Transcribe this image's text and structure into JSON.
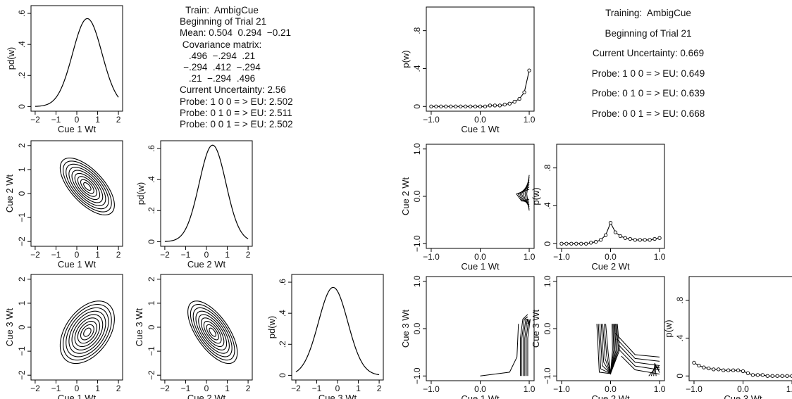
{
  "left_figure": {
    "info": [
      "Train:  AmbigCue",
      "Beginning of Trial 21",
      "Mean: 0.504  0.294  −0.21",
      "Covariance matrix:",
      ".496  −.294  .21",
      "−.294  .412  −.294",
      ".21  −.294  .496",
      "Current Uncertainty: 2.56",
      "Probe: 1 0 0 = > EU: 2.502",
      "Probe: 0 1 0 = > EU: 2.511",
      "Probe: 0 0 1 = > EU: 2.502"
    ],
    "mean": [
      0.504,
      0.294,
      -0.21
    ],
    "covariance": [
      [
        0.496,
        -0.294,
        0.21
      ],
      [
        -0.294,
        0.412,
        -0.294
      ],
      [
        0.21,
        -0.294,
        0.496
      ]
    ],
    "axis_labels": [
      "Cue 1 Wt",
      "Cue 2 Wt",
      "Cue 3 Wt"
    ],
    "x_ticks": [
      "−2",
      "−1",
      "0",
      "1",
      "2"
    ],
    "xlim": [
      -2.2,
      2.2
    ],
    "density_ylabel": "pd(w)",
    "density_ticks": [
      "0",
      ".2",
      ".4",
      ".6"
    ]
  },
  "right_figure": {
    "info": [
      "Training:  AmbigCue",
      "Beginning of Trial 21",
      "Current Uncertainty: 0.669",
      "Probe: 1 0 0 = > EU: 0.649",
      "Probe: 0 1 0 = > EU: 0.639",
      "Probe: 0 0 1 = > EU: 0.668"
    ],
    "axis_labels": [
      "Cue 1 Wt",
      "Cue 2 Wt",
      "Cue 3 Wt"
    ],
    "x_ticks": [
      "−1.0",
      "0.0",
      "1.0"
    ],
    "pair_y_ticks": [
      "−1.0",
      "0.0",
      "1.0"
    ],
    "xlim": [
      -1.1,
      1.1
    ],
    "prob_ylabel": "p(w)",
    "prob_ticks": [
      "0",
      ".4",
      ".8"
    ]
  },
  "chart_data": [
    {
      "type": "line",
      "panel": "left-marginal-cue1",
      "distribution": "normal",
      "mean": 0.504,
      "variance": 0.496,
      "xlabel": "Cue 1 Wt",
      "ylabel": "pd(w)",
      "xlim": [
        -2,
        2
      ],
      "ylim": [
        0,
        0.6
      ]
    },
    {
      "type": "line",
      "panel": "left-marginal-cue2",
      "distribution": "normal",
      "mean": 0.294,
      "variance": 0.412,
      "xlabel": "Cue 2 Wt",
      "ylabel": "pd(w)",
      "xlim": [
        -2,
        2
      ],
      "ylim": [
        0,
        0.6
      ]
    },
    {
      "type": "line",
      "panel": "left-marginal-cue3",
      "distribution": "normal",
      "mean": -0.21,
      "variance": 0.496,
      "xlabel": "Cue 3 Wt",
      "ylabel": "pd(w)",
      "xlim": [
        -2,
        2
      ],
      "ylim": [
        0,
        0.6
      ]
    },
    {
      "type": "contour",
      "panel": "left-joint-cue1-cue2",
      "xlabel": "Cue 1 Wt",
      "ylabel": "Cue 2 Wt",
      "mean": [
        0.504,
        0.294
      ],
      "covariance": [
        [
          0.496,
          -0.294
        ],
        [
          -0.294,
          0.412
        ]
      ],
      "xlim": [
        -2,
        2
      ],
      "ylim": [
        -2,
        2
      ]
    },
    {
      "type": "contour",
      "panel": "left-joint-cue1-cue3",
      "xlabel": "Cue 1 Wt",
      "ylabel": "Cue 3 Wt",
      "mean": [
        0.504,
        -0.21
      ],
      "covariance": [
        [
          0.496,
          0.21
        ],
        [
          0.21,
          0.496
        ]
      ],
      "xlim": [
        -2,
        2
      ],
      "ylim": [
        -2,
        2
      ]
    },
    {
      "type": "contour",
      "panel": "left-joint-cue2-cue3",
      "xlabel": "Cue 2 Wt",
      "ylabel": "Cue 3 Wt",
      "mean": [
        0.294,
        -0.21
      ],
      "covariance": [
        [
          0.412,
          -0.294
        ],
        [
          -0.294,
          0.496
        ]
      ],
      "xlim": [
        -2,
        2
      ],
      "ylim": [
        -2,
        2
      ]
    },
    {
      "type": "line",
      "panel": "right-marginal-cue1",
      "xlabel": "Cue 1 Wt",
      "ylabel": "p(w)",
      "ylim": [
        0,
        1
      ],
      "x": [
        -1.0,
        -0.9,
        -0.8,
        -0.7,
        -0.6,
        -0.5,
        -0.4,
        -0.3,
        -0.2,
        -0.1,
        0.0,
        0.1,
        0.2,
        0.3,
        0.4,
        0.5,
        0.6,
        0.7,
        0.8,
        0.9,
        1.0
      ],
      "y": [
        0.0,
        0.0,
        0.0,
        0.0,
        0.0,
        0.0,
        0.0,
        0.0,
        0.0,
        0.0,
        0.0,
        0.0,
        0.01,
        0.01,
        0.01,
        0.02,
        0.03,
        0.05,
        0.08,
        0.15,
        0.38
      ]
    },
    {
      "type": "line",
      "panel": "right-marginal-cue2",
      "xlabel": "Cue 2 Wt",
      "ylabel": "p(w)",
      "ylim": [
        0,
        1
      ],
      "x": [
        -1.0,
        -0.9,
        -0.8,
        -0.7,
        -0.6,
        -0.5,
        -0.4,
        -0.3,
        -0.2,
        -0.1,
        0.0,
        0.1,
        0.2,
        0.3,
        0.4,
        0.5,
        0.6,
        0.7,
        0.8,
        0.9,
        1.0
      ],
      "y": [
        0.0,
        0.0,
        0.0,
        0.0,
        0.0,
        0.0,
        0.01,
        0.02,
        0.04,
        0.09,
        0.22,
        0.12,
        0.08,
        0.06,
        0.05,
        0.04,
        0.04,
        0.04,
        0.04,
        0.05,
        0.06
      ]
    },
    {
      "type": "line",
      "panel": "right-marginal-cue3",
      "xlabel": "Cue 3 Wt",
      "ylabel": "p(w)",
      "ylim": [
        0,
        1
      ],
      "x": [
        -1.0,
        -0.9,
        -0.8,
        -0.7,
        -0.6,
        -0.5,
        -0.4,
        -0.3,
        -0.2,
        -0.1,
        0.0,
        0.1,
        0.2,
        0.3,
        0.4,
        0.5,
        0.6,
        0.7,
        0.8,
        0.9,
        1.0
      ],
      "y": [
        0.14,
        0.11,
        0.09,
        0.08,
        0.07,
        0.07,
        0.06,
        0.06,
        0.06,
        0.06,
        0.05,
        0.03,
        0.01,
        0.01,
        0.01,
        0.0,
        0.0,
        0.0,
        0.0,
        0.0,
        0.0
      ]
    },
    {
      "type": "contour",
      "panel": "right-joint-cue1-cue2",
      "xlabel": "Cue 1 Wt",
      "ylabel": "Cue 2 Wt",
      "xlim": [
        -1,
        1
      ],
      "ylim": [
        -1,
        1
      ],
      "note": "mass concentrated near Cue1=1.0, Cue2=0.0"
    },
    {
      "type": "contour",
      "panel": "right-joint-cue1-cue3",
      "xlabel": "Cue 1 Wt",
      "ylabel": "Cue 3 Wt",
      "xlim": [
        -1,
        1
      ],
      "ylim": [
        -1,
        1
      ],
      "note": "mass concentrated near Cue1=1.0, Cue3 from -1.0 to 0.0"
    },
    {
      "type": "contour",
      "panel": "right-joint-cue2-cue3",
      "xlabel": "Cue 2 Wt",
      "ylabel": "Cue 3 Wt",
      "xlim": [
        -1,
        1
      ],
      "ylim": [
        -1,
        1
      ],
      "note": "mass concentrated near Cue2=0.0, Cue3=0.0 and Cue2=1.0, Cue3=-1.0"
    }
  ]
}
